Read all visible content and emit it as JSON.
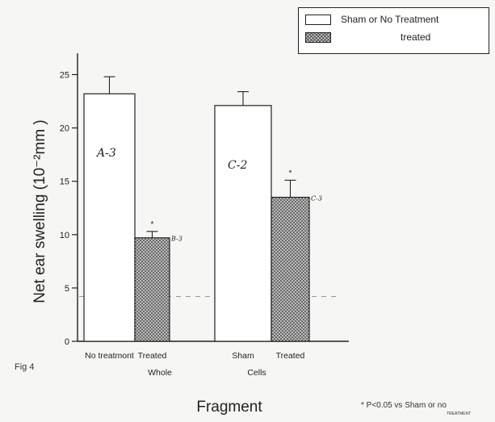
{
  "chart_data": {
    "type": "bar",
    "ylabel": "Net ear swelling  (10⁻²mm )",
    "xlabel": "Fragment",
    "ylim": [
      0,
      27
    ],
    "yticks": [
      0,
      5,
      10,
      15,
      20,
      25
    ],
    "reference_line": 4.2,
    "grid": false,
    "legend_position": "top-right",
    "groups": [
      {
        "name": "Whole",
        "bars": [
          {
            "label": "No treatmont",
            "value": 23.2,
            "error": 1.6,
            "series": "Sham or No Treatment",
            "annotation": "A-3",
            "star": false
          },
          {
            "label": "Treated",
            "value": 9.7,
            "error": 0.6,
            "series": "treated",
            "annotation": "B-3",
            "star": true
          }
        ]
      },
      {
        "name": "Cells",
        "bars": [
          {
            "label": "Sham",
            "value": 22.1,
            "error": 1.3,
            "series": "Sham or No Treatment",
            "annotation": "C-2",
            "star": false
          },
          {
            "label": "Treated",
            "value": 13.5,
            "error": 1.6,
            "series": "treated",
            "annotation": "C-3",
            "star": true
          }
        ]
      }
    ],
    "legend": [
      {
        "name": "Sham or No Treatment",
        "pattern": "open"
      },
      {
        "name": "treated",
        "pattern": "crosshatch"
      }
    ],
    "figure_label": "Fig 4",
    "footnote": "* P<0.05  vs  Sham or no",
    "footnote_sub": "TREATMENT"
  }
}
